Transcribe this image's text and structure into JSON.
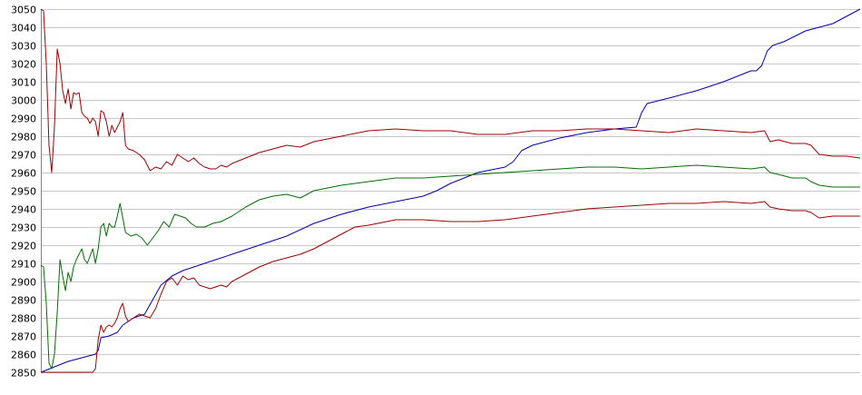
{
  "chart_data": {
    "type": "line",
    "title": "",
    "xlabel": "",
    "ylabel": "",
    "x_range": [
      0,
      300
    ],
    "ylim": [
      2850,
      3050
    ],
    "y_ticks": [
      2850,
      2860,
      2870,
      2880,
      2890,
      2900,
      2910,
      2920,
      2930,
      2940,
      2950,
      2960,
      2970,
      2980,
      2990,
      3000,
      3010,
      3020,
      3030,
      3040,
      3050
    ],
    "grid": true,
    "legend": "none",
    "series": [
      {
        "color": "#0000b0",
        "points": [
          [
            0,
            2850
          ],
          [
            5,
            2853
          ],
          [
            10,
            2856
          ],
          [
            15,
            2858
          ],
          [
            20,
            2860
          ],
          [
            21,
            2862
          ],
          [
            22,
            2869
          ],
          [
            25,
            2870
          ],
          [
            28,
            2872
          ],
          [
            30,
            2876
          ],
          [
            34,
            2880
          ],
          [
            38,
            2882
          ],
          [
            41,
            2890
          ],
          [
            44,
            2898
          ],
          [
            48,
            2903
          ],
          [
            52,
            2906
          ],
          [
            56,
            2908
          ],
          [
            60,
            2910
          ],
          [
            70,
            2915
          ],
          [
            80,
            2920
          ],
          [
            90,
            2925
          ],
          [
            100,
            2932
          ],
          [
            110,
            2937
          ],
          [
            120,
            2941
          ],
          [
            130,
            2944
          ],
          [
            140,
            2947
          ],
          [
            145,
            2950
          ],
          [
            150,
            2954
          ],
          [
            155,
            2957
          ],
          [
            160,
            2960
          ],
          [
            170,
            2963
          ],
          [
            173,
            2966
          ],
          [
            176,
            2972
          ],
          [
            180,
            2975
          ],
          [
            190,
            2979
          ],
          [
            200,
            2982
          ],
          [
            210,
            2984
          ],
          [
            218,
            2985
          ],
          [
            220,
            2993
          ],
          [
            222,
            2998
          ],
          [
            230,
            3001
          ],
          [
            240,
            3005
          ],
          [
            250,
            3010
          ],
          [
            260,
            3016
          ],
          [
            262,
            3016
          ],
          [
            264,
            3019
          ],
          [
            266,
            3027
          ],
          [
            268,
            3030
          ],
          [
            272,
            3032
          ],
          [
            276,
            3035
          ],
          [
            280,
            3038
          ],
          [
            290,
            3042
          ],
          [
            300,
            3050
          ]
        ]
      },
      {
        "color": "#a00000",
        "points": [
          [
            0,
            3050
          ],
          [
            1,
            3049
          ],
          [
            2,
            3020
          ],
          [
            3,
            2975
          ],
          [
            4,
            2960
          ],
          [
            5,
            2985
          ],
          [
            6,
            3028
          ],
          [
            7,
            3020
          ],
          [
            8,
            3005
          ],
          [
            9,
            2998
          ],
          [
            10,
            3006
          ],
          [
            11,
            2995
          ],
          [
            12,
            3004
          ],
          [
            13,
            3003
          ],
          [
            14,
            3004
          ],
          [
            15,
            2993
          ],
          [
            16,
            2991
          ],
          [
            17,
            2990
          ],
          [
            18,
            2987
          ],
          [
            19,
            2990
          ],
          [
            20,
            2988
          ],
          [
            21,
            2980
          ],
          [
            22,
            2994
          ],
          [
            23,
            2993
          ],
          [
            24,
            2988
          ],
          [
            25,
            2980
          ],
          [
            26,
            2986
          ],
          [
            27,
            2982
          ],
          [
            28,
            2985
          ],
          [
            29,
            2988
          ],
          [
            30,
            2993
          ],
          [
            31,
            2975
          ],
          [
            32,
            2973
          ],
          [
            34,
            2972
          ],
          [
            36,
            2970
          ],
          [
            38,
            2967
          ],
          [
            40,
            2961
          ],
          [
            42,
            2963
          ],
          [
            44,
            2962
          ],
          [
            46,
            2966
          ],
          [
            48,
            2964
          ],
          [
            50,
            2970
          ],
          [
            52,
            2968
          ],
          [
            54,
            2966
          ],
          [
            56,
            2968
          ],
          [
            58,
            2965
          ],
          [
            60,
            2963
          ],
          [
            62,
            2962
          ],
          [
            64,
            2962
          ],
          [
            66,
            2964
          ],
          [
            68,
            2963
          ],
          [
            70,
            2965
          ],
          [
            75,
            2968
          ],
          [
            80,
            2971
          ],
          [
            85,
            2973
          ],
          [
            90,
            2975
          ],
          [
            95,
            2974
          ],
          [
            100,
            2977
          ],
          [
            110,
            2980
          ],
          [
            120,
            2983
          ],
          [
            130,
            2984
          ],
          [
            140,
            2983
          ],
          [
            150,
            2983
          ],
          [
            160,
            2981
          ],
          [
            170,
            2981
          ],
          [
            180,
            2983
          ],
          [
            190,
            2983
          ],
          [
            200,
            2984
          ],
          [
            210,
            2984
          ],
          [
            220,
            2983
          ],
          [
            230,
            2982
          ],
          [
            240,
            2984
          ],
          [
            250,
            2983
          ],
          [
            260,
            2982
          ],
          [
            265,
            2983
          ],
          [
            267,
            2977
          ],
          [
            270,
            2978
          ],
          [
            275,
            2976
          ],
          [
            280,
            2976
          ],
          [
            282,
            2975
          ],
          [
            285,
            2970
          ],
          [
            290,
            2969
          ],
          [
            295,
            2969
          ],
          [
            300,
            2968
          ]
        ]
      },
      {
        "color": "#007000",
        "points": [
          [
            0,
            2909
          ],
          [
            1,
            2908
          ],
          [
            2,
            2888
          ],
          [
            3,
            2855
          ],
          [
            4,
            2852
          ],
          [
            5,
            2860
          ],
          [
            6,
            2883
          ],
          [
            7,
            2912
          ],
          [
            8,
            2903
          ],
          [
            9,
            2895
          ],
          [
            10,
            2905
          ],
          [
            11,
            2900
          ],
          [
            12,
            2908
          ],
          [
            13,
            2912
          ],
          [
            14,
            2915
          ],
          [
            15,
            2918
          ],
          [
            16,
            2912
          ],
          [
            17,
            2910
          ],
          [
            18,
            2914
          ],
          [
            19,
            2918
          ],
          [
            20,
            2910
          ],
          [
            21,
            2918
          ],
          [
            22,
            2930
          ],
          [
            23,
            2932
          ],
          [
            24,
            2925
          ],
          [
            25,
            2932
          ],
          [
            26,
            2930
          ],
          [
            27,
            2930
          ],
          [
            28,
            2936
          ],
          [
            29,
            2943
          ],
          [
            30,
            2935
          ],
          [
            31,
            2927
          ],
          [
            33,
            2925
          ],
          [
            35,
            2926
          ],
          [
            37,
            2924
          ],
          [
            39,
            2920
          ],
          [
            41,
            2924
          ],
          [
            43,
            2928
          ],
          [
            45,
            2933
          ],
          [
            47,
            2930
          ],
          [
            49,
            2937
          ],
          [
            51,
            2936
          ],
          [
            53,
            2935
          ],
          [
            55,
            2932
          ],
          [
            57,
            2930
          ],
          [
            60,
            2930
          ],
          [
            63,
            2932
          ],
          [
            66,
            2933
          ],
          [
            70,
            2936
          ],
          [
            75,
            2941
          ],
          [
            80,
            2945
          ],
          [
            85,
            2947
          ],
          [
            90,
            2948
          ],
          [
            95,
            2946
          ],
          [
            100,
            2950
          ],
          [
            110,
            2953
          ],
          [
            120,
            2955
          ],
          [
            130,
            2957
          ],
          [
            140,
            2957
          ],
          [
            150,
            2958
          ],
          [
            160,
            2959
          ],
          [
            170,
            2960
          ],
          [
            180,
            2961
          ],
          [
            190,
            2962
          ],
          [
            200,
            2963
          ],
          [
            210,
            2963
          ],
          [
            220,
            2962
          ],
          [
            230,
            2963
          ],
          [
            240,
            2964
          ],
          [
            250,
            2963
          ],
          [
            260,
            2962
          ],
          [
            265,
            2963
          ],
          [
            267,
            2960
          ],
          [
            270,
            2959
          ],
          [
            275,
            2957
          ],
          [
            280,
            2957
          ],
          [
            282,
            2955
          ],
          [
            285,
            2953
          ],
          [
            290,
            2952
          ],
          [
            295,
            2952
          ],
          [
            300,
            2952
          ]
        ]
      },
      {
        "color": "#a00000",
        "points": [
          [
            0,
            2850
          ],
          [
            5,
            2850
          ],
          [
            10,
            2850
          ],
          [
            15,
            2850
          ],
          [
            19,
            2850
          ],
          [
            20,
            2852
          ],
          [
            21,
            2868
          ],
          [
            22,
            2876
          ],
          [
            23,
            2872
          ],
          [
            24,
            2875
          ],
          [
            25,
            2876
          ],
          [
            26,
            2875
          ],
          [
            27,
            2877
          ],
          [
            28,
            2880
          ],
          [
            29,
            2885
          ],
          [
            30,
            2888
          ],
          [
            31,
            2881
          ],
          [
            32,
            2878
          ],
          [
            34,
            2880
          ],
          [
            36,
            2882
          ],
          [
            38,
            2881
          ],
          [
            40,
            2880
          ],
          [
            42,
            2885
          ],
          [
            44,
            2893
          ],
          [
            46,
            2900
          ],
          [
            48,
            2902
          ],
          [
            50,
            2898
          ],
          [
            52,
            2903
          ],
          [
            54,
            2901
          ],
          [
            56,
            2902
          ],
          [
            58,
            2898
          ],
          [
            60,
            2897
          ],
          [
            62,
            2896
          ],
          [
            64,
            2897
          ],
          [
            66,
            2898
          ],
          [
            68,
            2897
          ],
          [
            70,
            2900
          ],
          [
            75,
            2904
          ],
          [
            80,
            2908
          ],
          [
            85,
            2911
          ],
          [
            90,
            2913
          ],
          [
            95,
            2915
          ],
          [
            100,
            2918
          ],
          [
            105,
            2922
          ],
          [
            110,
            2926
          ],
          [
            115,
            2930
          ],
          [
            120,
            2931
          ],
          [
            130,
            2934
          ],
          [
            140,
            2934
          ],
          [
            150,
            2933
          ],
          [
            160,
            2933
          ],
          [
            170,
            2934
          ],
          [
            180,
            2936
          ],
          [
            190,
            2938
          ],
          [
            200,
            2940
          ],
          [
            210,
            2941
          ],
          [
            220,
            2942
          ],
          [
            230,
            2943
          ],
          [
            240,
            2943
          ],
          [
            250,
            2944
          ],
          [
            260,
            2943
          ],
          [
            265,
            2944
          ],
          [
            267,
            2941
          ],
          [
            270,
            2940
          ],
          [
            275,
            2939
          ],
          [
            280,
            2939
          ],
          [
            282,
            2938
          ],
          [
            285,
            2935
          ],
          [
            290,
            2936
          ],
          [
            295,
            2936
          ],
          [
            300,
            2936
          ]
        ]
      }
    ]
  }
}
